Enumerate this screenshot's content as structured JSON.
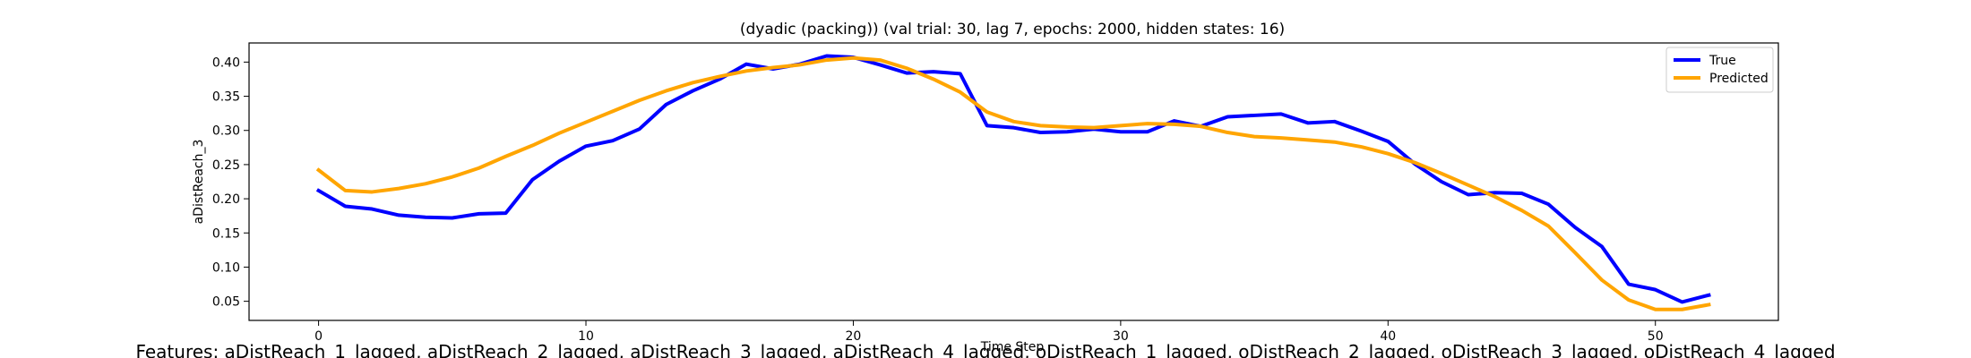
{
  "chart_data": {
    "type": "line",
    "title": "(dyadic (packing)) (val trial: 30, lag 7, epochs: 2000, hidden states: 16)",
    "xlabel": "Time Step",
    "ylabel": "aDistReach_3",
    "xlim": [
      -2.6,
      54.6
    ],
    "ylim": [
      0.022,
      0.428
    ],
    "xticks": [
      0,
      10,
      20,
      30,
      40,
      50
    ],
    "yticks": [
      0.05,
      0.1,
      0.15,
      0.2,
      0.25,
      0.3,
      0.35,
      0.4
    ],
    "legend_position": "top-right",
    "grid": false,
    "series": [
      {
        "name": "True",
        "color": "#0000ff",
        "x": [
          0,
          1,
          2,
          3,
          4,
          5,
          6,
          7,
          8,
          9,
          10,
          11,
          12,
          13,
          14,
          15,
          16,
          17,
          18,
          19,
          20,
          21,
          22,
          23,
          24,
          25,
          26,
          27,
          28,
          29,
          30,
          31,
          32,
          33,
          34,
          35,
          36,
          37,
          38,
          39,
          40,
          41,
          42,
          43,
          44,
          45,
          46,
          47,
          48,
          49,
          50,
          51,
          52
        ],
        "values": [
          0.212,
          0.189,
          0.185,
          0.176,
          0.173,
          0.172,
          0.178,
          0.179,
          0.228,
          0.255,
          0.277,
          0.285,
          0.302,
          0.338,
          0.358,
          0.375,
          0.397,
          0.39,
          0.397,
          0.409,
          0.407,
          0.396,
          0.384,
          0.386,
          0.383,
          0.307,
          0.304,
          0.297,
          0.298,
          0.302,
          0.298,
          0.298,
          0.314,
          0.306,
          0.32,
          0.322,
          0.324,
          0.311,
          0.313,
          0.299,
          0.284,
          0.251,
          0.225,
          0.206,
          0.209,
          0.208,
          0.192,
          0.158,
          0.13,
          0.075,
          0.067,
          0.049,
          0.059
        ]
      },
      {
        "name": "Predicted",
        "color": "#ffa500",
        "x": [
          0,
          1,
          2,
          3,
          4,
          5,
          6,
          7,
          8,
          9,
          10,
          11,
          12,
          13,
          14,
          15,
          16,
          17,
          18,
          19,
          20,
          21,
          22,
          23,
          24,
          25,
          26,
          27,
          28,
          29,
          30,
          31,
          32,
          33,
          34,
          35,
          36,
          37,
          38,
          39,
          40,
          41,
          42,
          43,
          44,
          45,
          46,
          47,
          48,
          49,
          50,
          51,
          52
        ],
        "values": [
          0.242,
          0.212,
          0.21,
          0.215,
          0.222,
          0.232,
          0.245,
          0.262,
          0.278,
          0.296,
          0.312,
          0.328,
          0.344,
          0.358,
          0.37,
          0.379,
          0.387,
          0.392,
          0.396,
          0.403,
          0.406,
          0.403,
          0.391,
          0.375,
          0.356,
          0.327,
          0.313,
          0.307,
          0.305,
          0.304,
          0.307,
          0.31,
          0.309,
          0.306,
          0.297,
          0.291,
          0.289,
          0.286,
          0.283,
          0.276,
          0.266,
          0.253,
          0.237,
          0.22,
          0.203,
          0.183,
          0.16,
          0.121,
          0.081,
          0.052,
          0.038,
          0.038,
          0.045
        ]
      }
    ],
    "annotation": "Features: aDistReach_1_lagged, aDistReach_2_lagged, aDistReach_3_lagged, aDistReach_4_lagged, oDistReach_1_lagged, oDistReach_2_lagged, oDistReach_3_lagged, oDistReach_4_lagged"
  }
}
